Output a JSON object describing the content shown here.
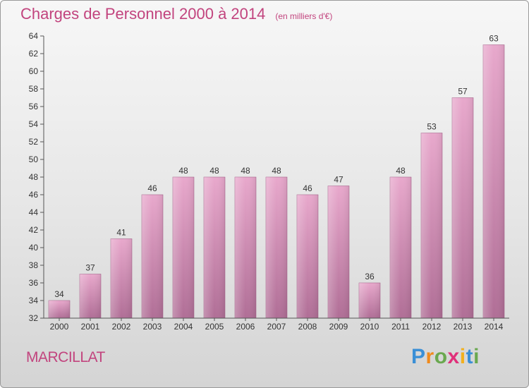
{
  "header": {
    "title": "Charges de Personnel 2000 à 2014",
    "subtitle": "(en milliers d'€)"
  },
  "footer": {
    "commune": "MARCILLAT",
    "logo_text": "Proxiti"
  },
  "colors": {
    "accent": "#c2447e",
    "bar_top": "#e8a8cc",
    "bar_bottom": "#b06e96"
  },
  "chart_data": {
    "type": "bar",
    "title": "Charges de Personnel 2000 à 2014",
    "subtitle": "(en milliers d'€)",
    "categories": [
      "2000",
      "2001",
      "2002",
      "2003",
      "2004",
      "2005",
      "2006",
      "2007",
      "2008",
      "2009",
      "2010",
      "2011",
      "2012",
      "2013",
      "2014"
    ],
    "values": [
      34,
      37,
      41,
      46,
      48,
      48,
      48,
      48,
      46,
      47,
      36,
      48,
      53,
      57,
      63
    ],
    "ylim": [
      32,
      64
    ],
    "yticks": [
      32,
      34,
      36,
      38,
      40,
      42,
      44,
      46,
      48,
      50,
      52,
      54,
      56,
      58,
      60,
      62,
      64
    ],
    "grid": false,
    "data_labels": true
  }
}
